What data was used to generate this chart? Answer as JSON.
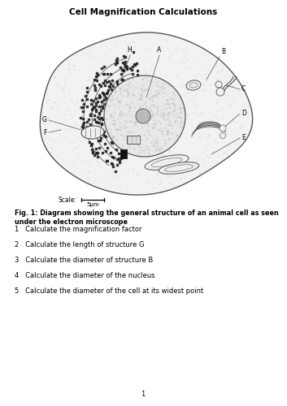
{
  "title": "Cell Magnification Calculations",
  "fig_caption": "Fig. 1: Diagram showing the general structure of an animal cell as seen under the electron microscope",
  "scale_label": "Scale:",
  "scale_value": "5μm",
  "questions": [
    "1   Calculate the magnification factor",
    "2   Calculate the length of structure G",
    "3   Calculate the diameter of structure B",
    "4   Calculate the diameter of the nucleus",
    "5   Calculate the diameter of the cell at its widest point"
  ],
  "page_number": "1",
  "bg_color": "#ffffff"
}
